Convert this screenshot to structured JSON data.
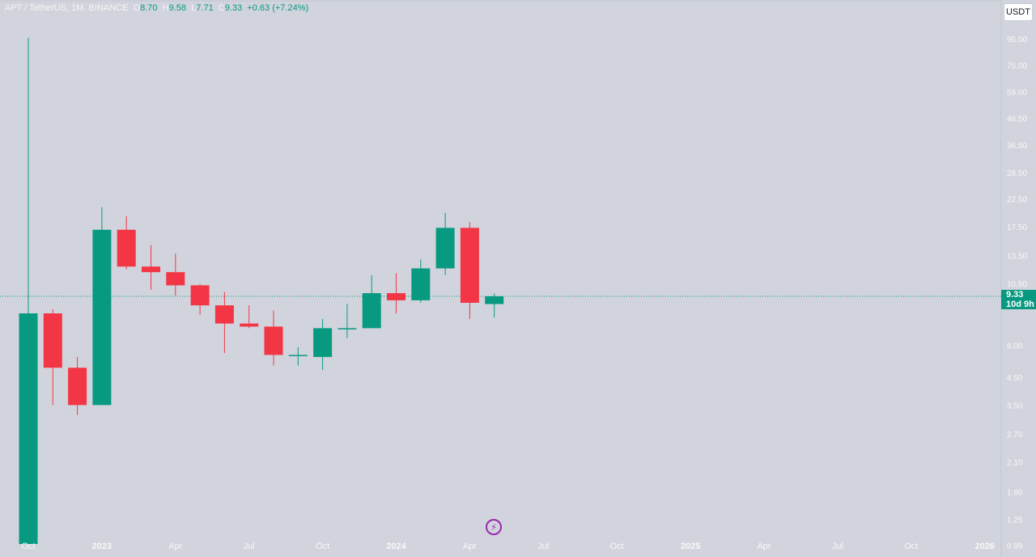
{
  "legend": {
    "symbol": "APT / TetherUS, 1M, BINANCE",
    "o_label": "O",
    "o_value": "8.70",
    "h_label": "H",
    "h_value": "9.58",
    "l_label": "L",
    "l_value": "7.71",
    "c_label": "C",
    "c_value": "9.33",
    "change": "+0.63 (+7.24%)"
  },
  "currency_button": "USDT",
  "last_price": {
    "price": "9.33",
    "countdown": "10d 9h"
  },
  "colors": {
    "up": "#089981",
    "down": "#f23645",
    "background": "#d1d4dc",
    "last_price_line": "#089981",
    "event_icon": "#9c27b0"
  },
  "event_icon": "lightning-bolt-icon",
  "chart_data": {
    "type": "candlestick",
    "scale": "log",
    "grid": false,
    "y_ticks": [
      "0.79",
      "0.99",
      "1.25",
      "1.60",
      "2.10",
      "2.70",
      "3.50",
      "4.50",
      "6.00",
      "10.50",
      "13.50",
      "17.50",
      "22.50",
      "28.50",
      "36.50",
      "46.50",
      "59.00",
      "75.00",
      "95.00",
      "120.00",
      "160.00"
    ],
    "x_ticks": [
      {
        "label": "Oct",
        "x": "2022-10-01",
        "bold": false
      },
      {
        "label": "2023",
        "x": "2023-01-01",
        "bold": true
      },
      {
        "label": "Apr",
        "x": "2023-04-01",
        "bold": false
      },
      {
        "label": "Jul",
        "x": "2023-07-01",
        "bold": false
      },
      {
        "label": "Oct",
        "x": "2023-10-01",
        "bold": false
      },
      {
        "label": "2024",
        "x": "2024-01-01",
        "bold": true
      },
      {
        "label": "Apr",
        "x": "2024-04-01",
        "bold": false
      },
      {
        "label": "Jul",
        "x": "2024-07-01",
        "bold": false
      },
      {
        "label": "Oct",
        "x": "2024-10-01",
        "bold": false
      },
      {
        "label": "2025",
        "x": "2025-01-01",
        "bold": true
      },
      {
        "label": "Apr",
        "x": "2025-04-01",
        "bold": false
      },
      {
        "label": "Jul",
        "x": "2025-07-01",
        "bold": false
      },
      {
        "label": "Oct",
        "x": "2025-10-01",
        "bold": false
      },
      {
        "label": "2026",
        "x": "2026-01-01",
        "bold": true
      }
    ],
    "candles": [
      {
        "t": "2022-10",
        "o": 1.0,
        "h": 96.0,
        "l": 1.0,
        "c": 8.0
      },
      {
        "t": "2022-11",
        "o": 8.0,
        "h": 8.3,
        "l": 3.5,
        "c": 4.9
      },
      {
        "t": "2022-12",
        "o": 4.9,
        "h": 5.4,
        "l": 3.2,
        "c": 3.5
      },
      {
        "t": "2023-01",
        "o": 3.5,
        "h": 20.8,
        "l": 3.5,
        "c": 17.0
      },
      {
        "t": "2023-02",
        "o": 17.0,
        "h": 19.2,
        "l": 11.9,
        "c": 12.2
      },
      {
        "t": "2023-03",
        "o": 12.2,
        "h": 14.8,
        "l": 9.9,
        "c": 11.6
      },
      {
        "t": "2023-04",
        "o": 11.6,
        "h": 13.7,
        "l": 9.4,
        "c": 10.3
      },
      {
        "t": "2023-05",
        "o": 10.3,
        "h": 10.4,
        "l": 7.9,
        "c": 8.6
      },
      {
        "t": "2023-06",
        "o": 8.6,
        "h": 9.7,
        "l": 5.6,
        "c": 7.3
      },
      {
        "t": "2023-07",
        "o": 7.3,
        "h": 8.6,
        "l": 7.0,
        "c": 7.1
      },
      {
        "t": "2023-08",
        "o": 7.1,
        "h": 8.2,
        "l": 5.0,
        "c": 5.5
      },
      {
        "t": "2023-09",
        "o": 5.5,
        "h": 5.9,
        "l": 5.0,
        "c": 5.5
      },
      {
        "t": "2023-10",
        "o": 5.4,
        "h": 7.6,
        "l": 4.8,
        "c": 7.0
      },
      {
        "t": "2023-11",
        "o": 7.0,
        "h": 8.7,
        "l": 6.4,
        "c": 7.0
      },
      {
        "t": "2023-12",
        "o": 7.0,
        "h": 11.3,
        "l": 7.0,
        "c": 9.6
      },
      {
        "t": "2024-01",
        "o": 9.6,
        "h": 11.5,
        "l": 8.0,
        "c": 9.0
      },
      {
        "t": "2024-02",
        "o": 9.0,
        "h": 13.0,
        "l": 8.8,
        "c": 12.0
      },
      {
        "t": "2024-03",
        "o": 12.0,
        "h": 19.8,
        "l": 11.3,
        "c": 17.3
      },
      {
        "t": "2024-04",
        "o": 17.3,
        "h": 18.2,
        "l": 7.6,
        "c": 8.8
      },
      {
        "t": "2024-05",
        "o": 8.7,
        "h": 9.58,
        "l": 7.71,
        "c": 9.33
      }
    ]
  }
}
